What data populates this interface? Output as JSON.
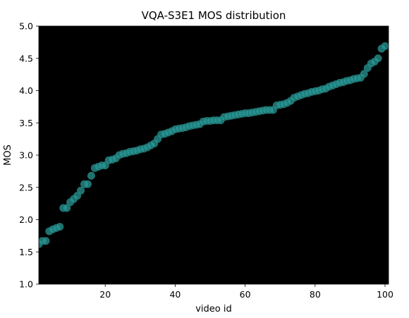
{
  "chart_data": {
    "type": "scatter",
    "title": "VQA-S3E1 MOS distribution",
    "xlabel": "video id",
    "ylabel": "MOS",
    "xlim": [
      1,
      101
    ],
    "ylim": [
      1.0,
      5.0
    ],
    "xticks": [
      20,
      40,
      60,
      80,
      100
    ],
    "xtick_labels": [
      "20",
      "40",
      "60",
      "80",
      "100"
    ],
    "yticks": [
      1.0,
      1.5,
      2.0,
      2.5,
      3.0,
      3.5,
      4.0,
      4.5,
      5.0
    ],
    "ytick_labels": [
      "1.0",
      "1.5",
      "2.0",
      "2.5",
      "3.0",
      "3.5",
      "4.0",
      "4.5",
      "5.0"
    ],
    "grid": false,
    "colors": {
      "plot_background": "#000000",
      "marker": "#2a9d9a",
      "marker_edge": "#1f7674"
    },
    "x": [
      1,
      2,
      3,
      4,
      5,
      6,
      7,
      8,
      9,
      10,
      11,
      12,
      13,
      14,
      15,
      16,
      17,
      18,
      19,
      20,
      21,
      22,
      23,
      24,
      25,
      26,
      27,
      28,
      29,
      30,
      31,
      32,
      33,
      34,
      35,
      36,
      37,
      38,
      39,
      40,
      41,
      42,
      43,
      44,
      45,
      46,
      47,
      48,
      49,
      50,
      51,
      52,
      53,
      54,
      55,
      56,
      57,
      58,
      59,
      60,
      61,
      62,
      63,
      64,
      65,
      66,
      67,
      68,
      69,
      70,
      71,
      72,
      73,
      74,
      75,
      76,
      77,
      78,
      79,
      80,
      81,
      82,
      83,
      84,
      85,
      86,
      87,
      88,
      89,
      90,
      91,
      92,
      93,
      94,
      95,
      96,
      97,
      98,
      99,
      100
    ],
    "y": [
      1.62,
      1.67,
      1.67,
      1.82,
      1.85,
      1.87,
      1.89,
      2.18,
      2.18,
      2.27,
      2.32,
      2.37,
      2.45,
      2.55,
      2.55,
      2.68,
      2.8,
      2.82,
      2.84,
      2.84,
      2.92,
      2.93,
      2.95,
      3.0,
      3.02,
      3.03,
      3.05,
      3.06,
      3.07,
      3.09,
      3.1,
      3.12,
      3.15,
      3.18,
      3.25,
      3.32,
      3.33,
      3.35,
      3.37,
      3.4,
      3.41,
      3.42,
      3.43,
      3.45,
      3.46,
      3.47,
      3.48,
      3.52,
      3.53,
      3.53,
      3.54,
      3.54,
      3.54,
      3.59,
      3.6,
      3.61,
      3.62,
      3.63,
      3.64,
      3.65,
      3.65,
      3.66,
      3.67,
      3.68,
      3.69,
      3.7,
      3.7,
      3.7,
      3.77,
      3.78,
      3.79,
      3.81,
      3.84,
      3.89,
      3.91,
      3.93,
      3.95,
      3.96,
      3.98,
      3.99,
      4.0,
      4.02,
      4.03,
      4.06,
      4.08,
      4.1,
      4.12,
      4.13,
      4.15,
      4.16,
      4.18,
      4.19,
      4.2,
      4.26,
      4.35,
      4.42,
      4.45,
      4.5,
      4.65,
      4.69
    ]
  }
}
